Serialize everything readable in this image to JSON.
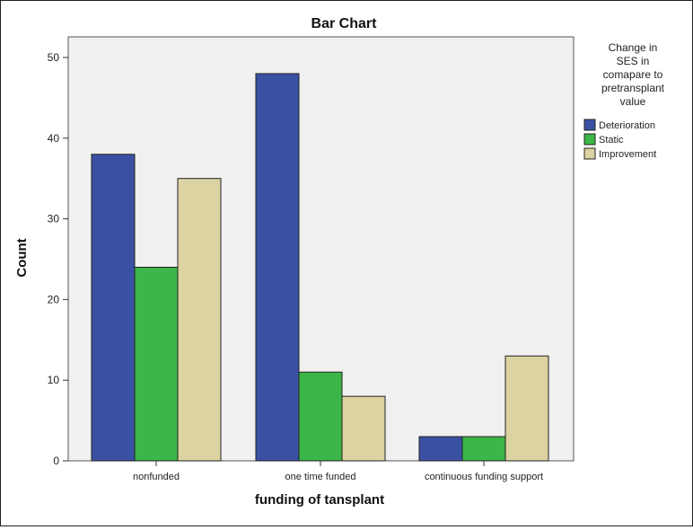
{
  "chart_data": {
    "type": "bar",
    "title": "Bar Chart",
    "xlabel": "funding of tansplant",
    "ylabel": "Count",
    "categories": [
      "nonfunded",
      "one time funded",
      "continuous funding support"
    ],
    "series": [
      {
        "name": "Deterioration",
        "values": [
          38,
          48,
          3
        ],
        "color": "#3a51a3"
      },
      {
        "name": "Static",
        "values": [
          24,
          11,
          3
        ],
        "color": "#3cb648"
      },
      {
        "name": "Improvement",
        "values": [
          35,
          8,
          13
        ],
        "color": "#dbd3a1"
      }
    ],
    "ylim": [
      0,
      50
    ],
    "yticks": [
      0,
      10,
      20,
      30,
      40,
      50
    ],
    "legend": {
      "title_lines": [
        "Change in",
        "SES in",
        "comapare to",
        "pretransplant",
        "value"
      ],
      "placement": "right"
    },
    "plot_background": "#f0f0f0",
    "grid": false
  }
}
